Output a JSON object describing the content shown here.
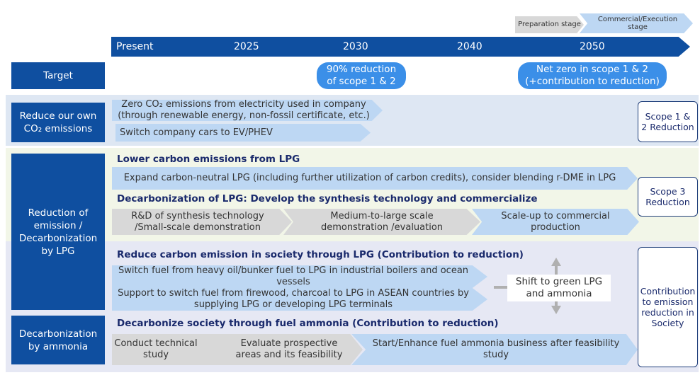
{
  "stages": {
    "preparation": "Preparation stage",
    "commercial": "Commercial/Execution stage"
  },
  "timeline": [
    "Present",
    "2025",
    "2030",
    "2040",
    "2050"
  ],
  "target": {
    "label": "Target",
    "pill_2030": "90% reduction of scope 1 & 2",
    "pill_2050": "Net zero in scope 1 & 2 (+contribution to reduction)"
  },
  "categories": {
    "own": "Reduce our own CO₂ emissions",
    "lpg": "Reduction of emission / Decarbonization by LPG",
    "ammonia": "Decarbonization by ammonia"
  },
  "own": {
    "item1": "Zero CO₂ emissions from electricity used in company (through renewable energy, non-fossil certificate, etc.)",
    "item2": "Switch company cars to EV/PHEV"
  },
  "lpg": {
    "header1": "Lower carbon emissions from LPG",
    "item1": "Expand carbon-neutral LPG (including further utilization of carbon credits), consider blending r-DME in LPG",
    "header2": "Decarbonization of LPG: Develop the synthesis technology and commercialize",
    "step1": "R&D of synthesis technology /Small-scale demonstration",
    "step2": "Medium-to-large scale demonstration /evaluation",
    "step3": "Scale-up to commercial production",
    "header3": "Reduce carbon emission in society through LPG (Contribution to reduction)",
    "item3": "Switch fuel from heavy oil/bunker fuel to LPG in industrial boilers and ocean vessels",
    "item4": "Support to switch fuel from firewood, charcoal to LPG in ASEAN countries by supplying LPG or developing LPG terminals",
    "shift": "Shift to green LPG and ammonia"
  },
  "ammonia": {
    "header": "Decarbonize society through fuel ammonia (Contribution to reduction)",
    "step1": "Conduct technical study",
    "step2": "Evaluate prospective areas and its feasibility",
    "step3": "Start/Enhance fuel ammonia business after feasibility study"
  },
  "side": {
    "scope12": "Scope 1 & 2 Reduction",
    "scope3": "Scope 3 Reduction",
    "society": "Contribution to emission reduction in Society"
  }
}
